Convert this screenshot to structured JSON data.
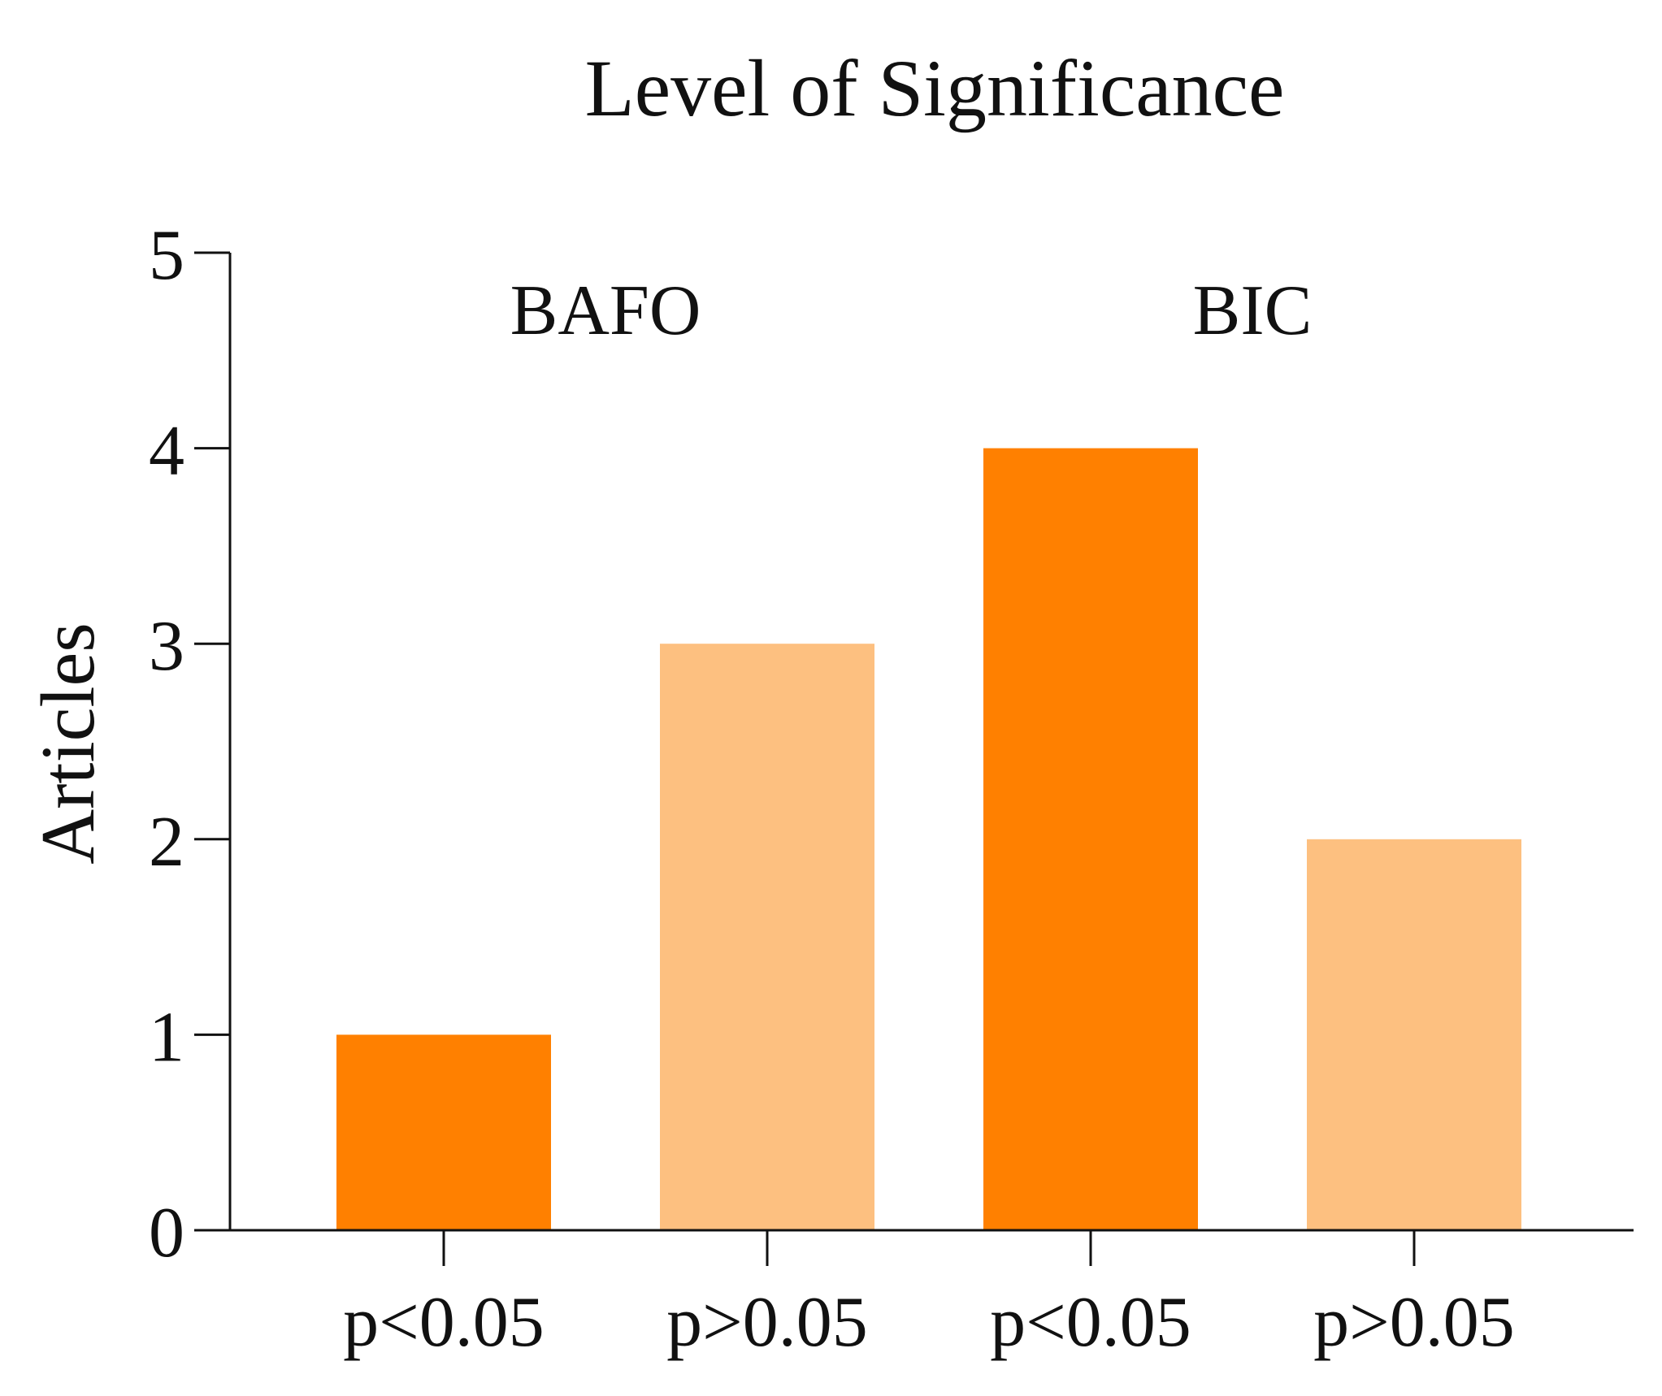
{
  "chart_data": {
    "type": "bar",
    "title": "Level of Significance",
    "ylabel": "Articles",
    "xlabel": "",
    "ylim": [
      0,
      5
    ],
    "yticks": [
      0,
      1,
      2,
      3,
      4,
      5
    ],
    "grid": false,
    "categories": [
      "p<0.05",
      "p>0.05",
      "p<0.05",
      "p>0.05"
    ],
    "values": [
      1,
      3,
      4,
      2
    ],
    "groups": [
      {
        "label": "BAFO",
        "bar_indices": [
          0,
          1
        ]
      },
      {
        "label": "BIC",
        "bar_indices": [
          2,
          3
        ]
      }
    ],
    "colors": {
      "significant": "#FF8000",
      "not_significant": "#FDC080",
      "axis": "#111111"
    },
    "bar_color_keys": [
      "significant",
      "not_significant",
      "significant",
      "not_significant"
    ]
  }
}
